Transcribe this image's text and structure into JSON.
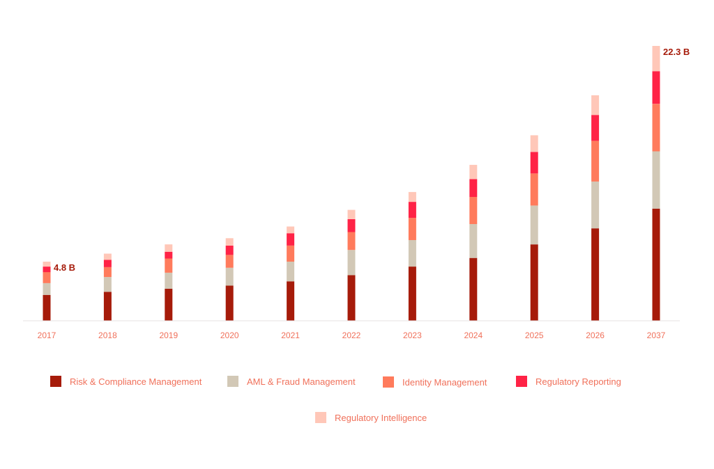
{
  "chart_data": {
    "type": "bar",
    "stacked": true,
    "categories": [
      "2017",
      "2018",
      "2019",
      "2020",
      "2021",
      "2022",
      "2023",
      "2024",
      "2025",
      "2026",
      "2037"
    ],
    "series": [
      {
        "name": "Risk & Compliance Management",
        "color": "#a61b0a",
        "values": [
          2.1,
          2.35,
          2.6,
          2.85,
          3.2,
          3.7,
          4.4,
          5.1,
          6.2,
          7.5,
          9.1
        ]
      },
      {
        "name": "AML & Fraud Management",
        "color": "#d2c8b6",
        "values": [
          0.95,
          1.2,
          1.3,
          1.45,
          1.6,
          2.05,
          2.15,
          2.75,
          3.15,
          3.8,
          4.65
        ]
      },
      {
        "name": "Identity Management",
        "color": "#ff7b5c",
        "values": [
          0.9,
          0.8,
          1.15,
          1.05,
          1.3,
          1.45,
          1.8,
          2.2,
          2.6,
          3.3,
          3.85
        ]
      },
      {
        "name": "Regulatory Reporting",
        "color": "#ff2346",
        "values": [
          0.45,
          0.6,
          0.55,
          0.75,
          1.0,
          1.05,
          1.3,
          1.45,
          1.75,
          2.1,
          2.65
        ]
      },
      {
        "name": "Regulatory Intelligence",
        "color": "#ffc7b8",
        "values": [
          0.4,
          0.5,
          0.6,
          0.6,
          0.55,
          0.75,
          0.8,
          1.15,
          1.35,
          1.6,
          2.05
        ]
      }
    ],
    "annotations": [
      {
        "category": "2017",
        "text": "4.8 B"
      },
      {
        "category": "2037",
        "text": "22.3 B"
      }
    ],
    "ylim": [
      0,
      22.3
    ],
    "grid": false,
    "legend_position": "bottom"
  }
}
